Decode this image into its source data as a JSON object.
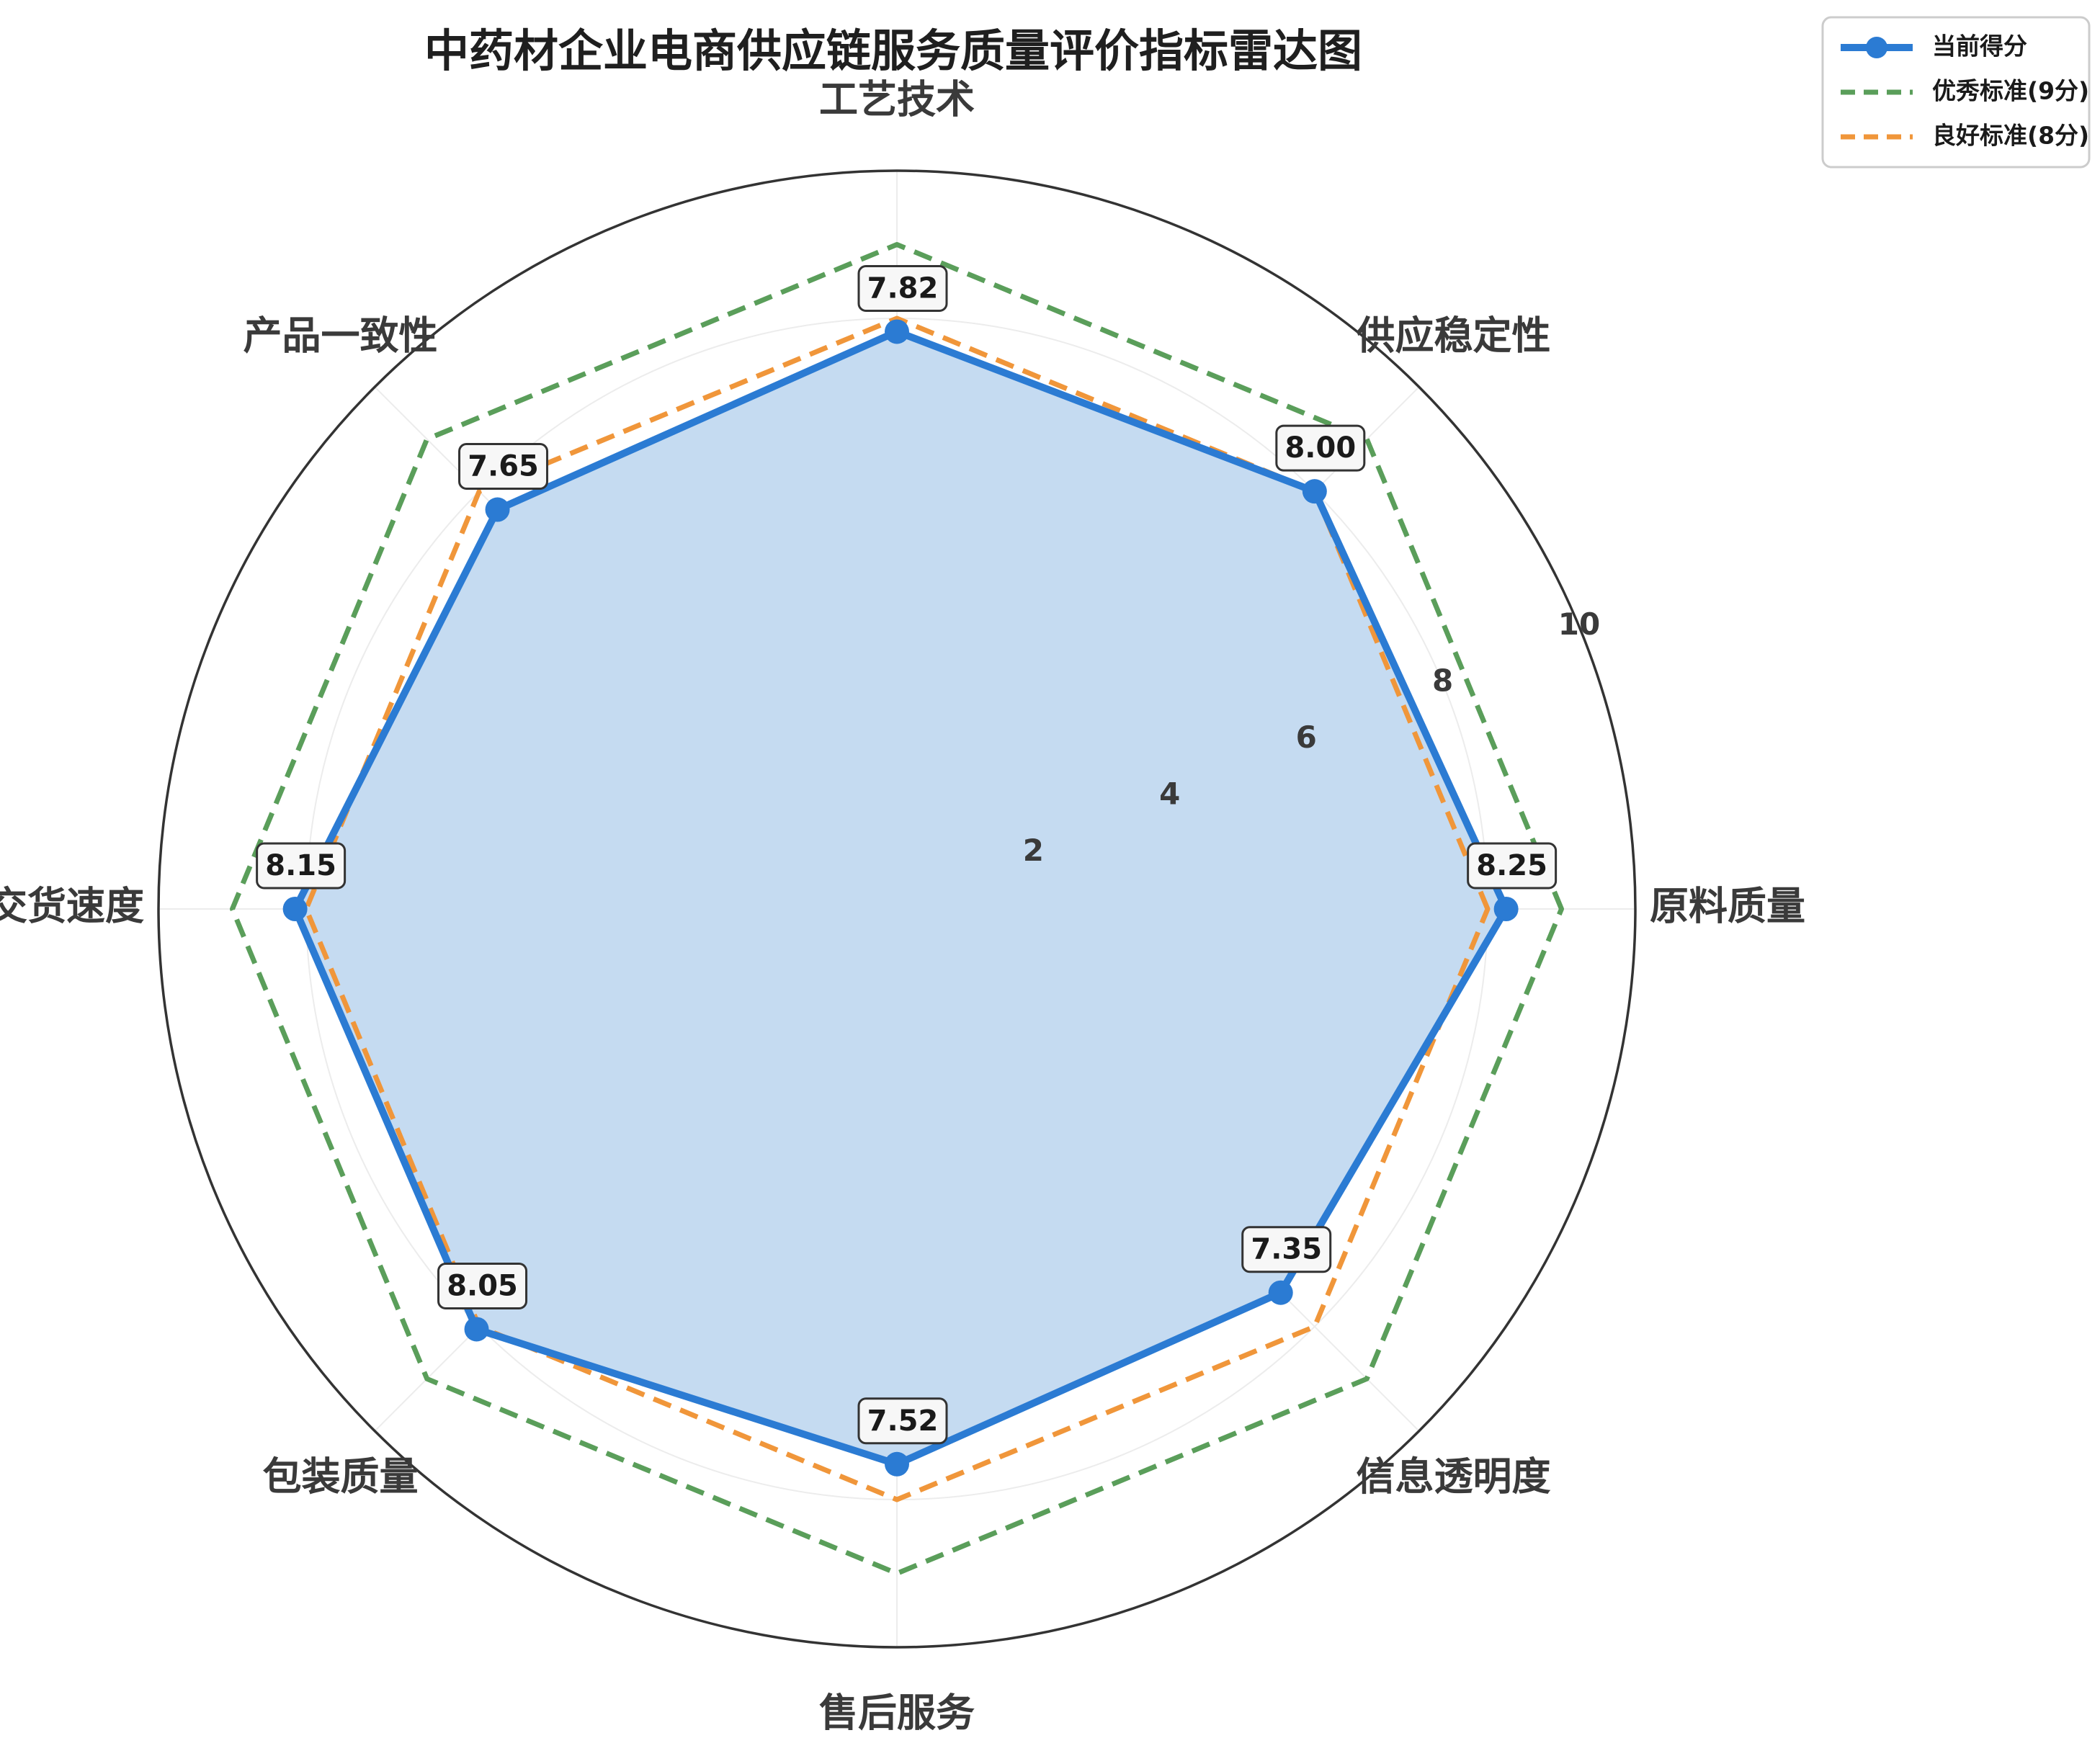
{
  "chart_data": {
    "type": "radar",
    "title": "中药材企业电商供应链服务质量评价指标雷达图",
    "categories": [
      "原料质量",
      "供应稳定性",
      "工艺技术",
      "产品一致性",
      "交货速度",
      "包装质量",
      "售后服务",
      "信息透明度"
    ],
    "rlim": [
      0,
      10
    ],
    "rticks": [
      "2",
      "4",
      "6",
      "8",
      "10"
    ],
    "grid": true,
    "legend_position": "top-right",
    "series": [
      {
        "name": "当前得分",
        "values": [
          8.25,
          8.0,
          7.82,
          7.65,
          8.15,
          8.05,
          7.52,
          7.35
        ],
        "value_labels": [
          "8.25",
          "8.00",
          "7.82",
          "7.65",
          "8.15",
          "8.05",
          "7.52",
          "7.35"
        ],
        "style": "solid-marker-filled",
        "color": "#2b7bd3",
        "fill_color": "#c5dbf1"
      },
      {
        "name": "优秀标准(9分)",
        "values": [
          9,
          9,
          9,
          9,
          9,
          9,
          9,
          9
        ],
        "style": "dashed",
        "color": "#5a9e5a"
      },
      {
        "name": "良好标准(8分)",
        "values": [
          8,
          8,
          8,
          8,
          8,
          8,
          8,
          8
        ],
        "style": "dashed",
        "color": "#f0963a"
      }
    ]
  }
}
